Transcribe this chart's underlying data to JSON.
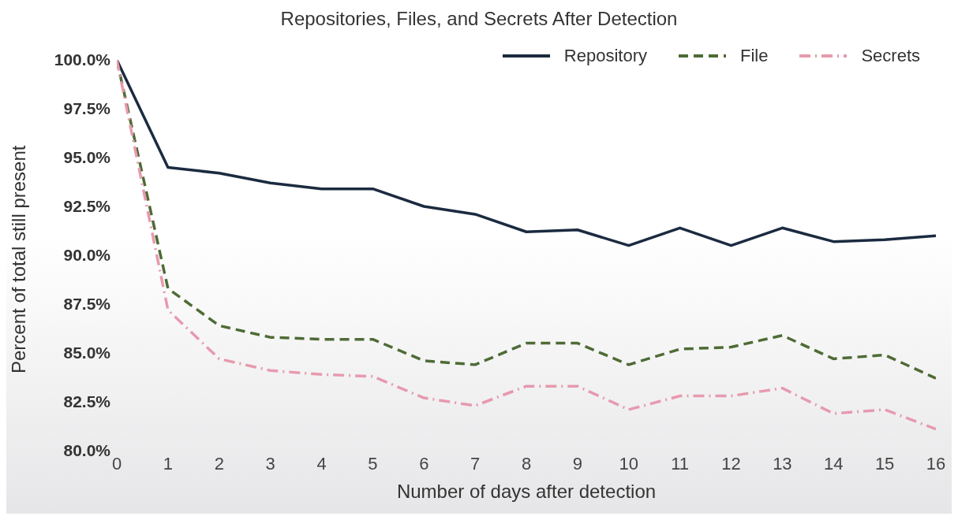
{
  "chart_data": {
    "type": "line",
    "title": "Repositories, Files, and Secrets After Detection",
    "xlabel": "Number of days after detection",
    "ylabel": "Percent of total still present",
    "x": [
      0,
      1,
      2,
      3,
      4,
      5,
      6,
      7,
      8,
      9,
      10,
      11,
      12,
      13,
      14,
      15,
      16
    ],
    "xlim": [
      0,
      16
    ],
    "xticks": [
      0,
      1,
      2,
      3,
      4,
      5,
      6,
      7,
      8,
      9,
      10,
      11,
      12,
      13,
      14,
      15,
      16
    ],
    "ylim": [
      80,
      100
    ],
    "yticks": [
      {
        "value": 80,
        "label": "80.0%"
      },
      {
        "value": 82.5,
        "label": "82.5%"
      },
      {
        "value": 85,
        "label": "85.0%"
      },
      {
        "value": 87.5,
        "label": "87.5%"
      },
      {
        "value": 90,
        "label": "90.0%"
      },
      {
        "value": 92.5,
        "label": "92.5%"
      },
      {
        "value": 95,
        "label": "95.0%"
      },
      {
        "value": 97.5,
        "label": "97.5%"
      },
      {
        "value": 100,
        "label": "100.0%"
      }
    ],
    "grid": false,
    "legend": "top right",
    "marker": "none",
    "series": [
      {
        "name": "Repository",
        "color": "#1b2b40",
        "line_style": "solid",
        "values": [
          100,
          94.5,
          94.2,
          93.7,
          93.4,
          93.4,
          92.5,
          92.1,
          91.2,
          91.3,
          90.5,
          91.4,
          90.5,
          91.4,
          90.7,
          90.8,
          91.0
        ]
      },
      {
        "name": "File",
        "color": "#4e6b35",
        "line_style": "dashed",
        "values": [
          100,
          88.3,
          86.4,
          85.8,
          85.7,
          85.7,
          84.6,
          84.4,
          85.5,
          85.5,
          84.4,
          85.2,
          85.3,
          85.9,
          84.7,
          84.9,
          83.7
        ]
      },
      {
        "name": "Secrets",
        "color": "#e79aae",
        "line_style": "dashdot",
        "values": [
          100,
          87.2,
          84.7,
          84.1,
          83.9,
          83.8,
          82.7,
          82.3,
          83.3,
          83.3,
          82.1,
          82.8,
          82.8,
          83.2,
          81.9,
          82.1,
          81.1
        ]
      }
    ]
  }
}
